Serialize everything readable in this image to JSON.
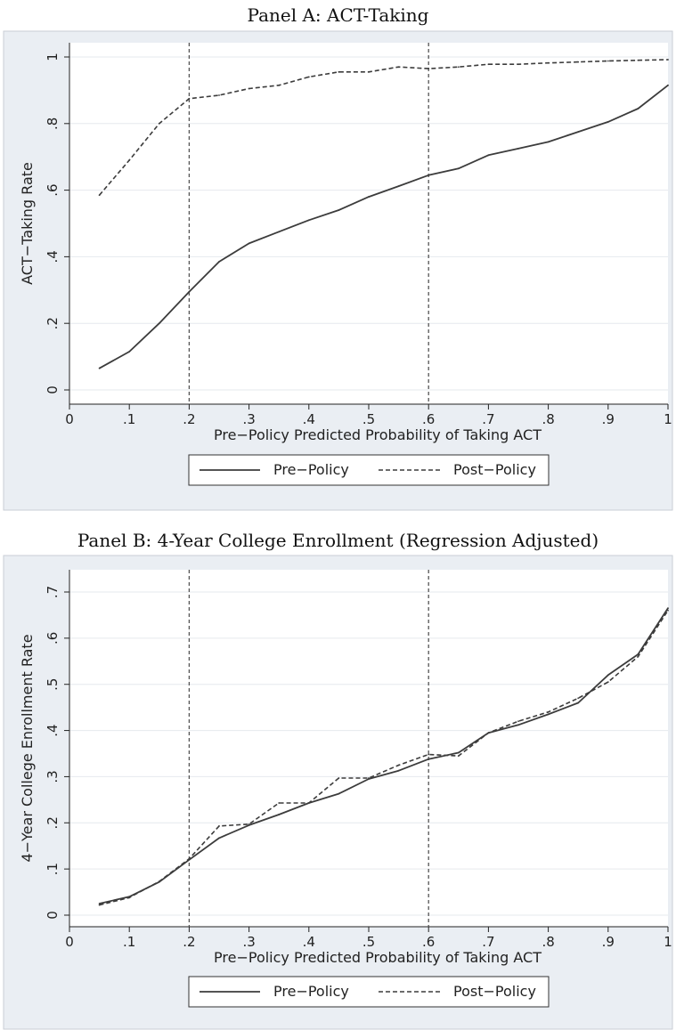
{
  "chart_data": [
    {
      "type": "line",
      "title": "Panel A: ACT-Taking",
      "xlabel": "Pre−Policy Predicted Probability of Taking ACT",
      "ylabel": "ACT−Taking Rate",
      "xlim": [
        0,
        1
      ],
      "ylim": [
        0,
        1
      ],
      "xticks": [
        0,
        0.1,
        0.2,
        0.3,
        0.4,
        0.5,
        0.6,
        0.7,
        0.8,
        0.9,
        1
      ],
      "xtick_labels": [
        "0",
        ".1",
        ".2",
        ".3",
        ".4",
        ".5",
        ".6",
        ".7",
        ".8",
        ".9",
        "1"
      ],
      "yticks": [
        0,
        0.2,
        0.4,
        0.6,
        0.8,
        1
      ],
      "ytick_labels": [
        "0",
        ".2",
        ".4",
        ".6",
        ".8",
        "1"
      ],
      "vlines": [
        0.2,
        0.6
      ],
      "grid": true,
      "legend_position": "bottom",
      "x": [
        0.05,
        0.1,
        0.15,
        0.2,
        0.25,
        0.3,
        0.35,
        0.4,
        0.45,
        0.5,
        0.55,
        0.6,
        0.65,
        0.7,
        0.75,
        0.8,
        0.85,
        0.9,
        0.95,
        1.0
      ],
      "series": [
        {
          "name": "Pre−Policy",
          "style": "solid",
          "values": [
            0.065,
            0.115,
            0.2,
            0.295,
            0.385,
            0.44,
            0.475,
            0.51,
            0.54,
            0.58,
            0.612,
            0.645,
            0.665,
            0.705,
            0.725,
            0.745,
            0.775,
            0.805,
            0.845,
            0.915
          ]
        },
        {
          "name": "Post−Policy",
          "style": "dashed",
          "values": [
            0.585,
            0.69,
            0.8,
            0.875,
            0.885,
            0.905,
            0.915,
            0.94,
            0.955,
            0.955,
            0.97,
            0.965,
            0.97,
            0.978,
            0.978,
            0.982,
            0.985,
            0.988,
            0.99,
            0.992
          ]
        }
      ]
    },
    {
      "type": "line",
      "title": "Panel B: 4-Year College Enrollment (Regression Adjusted)",
      "xlabel": "Pre−Policy Predicted Probability of Taking ACT",
      "ylabel": "4−Year College Enrollment Rate",
      "xlim": [
        0,
        1
      ],
      "ylim": [
        0,
        0.7
      ],
      "xticks": [
        0,
        0.1,
        0.2,
        0.3,
        0.4,
        0.5,
        0.6,
        0.7,
        0.8,
        0.9,
        1
      ],
      "xtick_labels": [
        "0",
        ".1",
        ".2",
        ".3",
        ".4",
        ".5",
        ".6",
        ".7",
        ".8",
        ".9",
        "1"
      ],
      "yticks": [
        0,
        0.1,
        0.2,
        0.3,
        0.4,
        0.5,
        0.6,
        0.7
      ],
      "ytick_labels": [
        "0",
        ".1",
        ".2",
        ".3",
        ".4",
        ".5",
        ".6",
        ".7"
      ],
      "vlines": [
        0.2,
        0.6
      ],
      "grid": true,
      "legend_position": "bottom",
      "x": [
        0.05,
        0.1,
        0.15,
        0.2,
        0.25,
        0.3,
        0.35,
        0.4,
        0.45,
        0.5,
        0.55,
        0.6,
        0.65,
        0.7,
        0.75,
        0.8,
        0.85,
        0.9,
        0.95,
        1.0
      ],
      "series": [
        {
          "name": "Pre−Policy",
          "style": "solid",
          "values": [
            0.025,
            0.04,
            0.072,
            0.12,
            0.167,
            0.195,
            0.218,
            0.243,
            0.263,
            0.295,
            0.313,
            0.338,
            0.352,
            0.395,
            0.412,
            0.435,
            0.46,
            0.52,
            0.565,
            0.665
          ]
        },
        {
          "name": "Post−Policy",
          "style": "dashed",
          "values": [
            0.022,
            0.038,
            0.073,
            0.122,
            0.193,
            0.197,
            0.243,
            0.243,
            0.297,
            0.297,
            0.325,
            0.348,
            0.345,
            0.395,
            0.42,
            0.44,
            0.47,
            0.505,
            0.56,
            0.66
          ]
        }
      ]
    }
  ]
}
